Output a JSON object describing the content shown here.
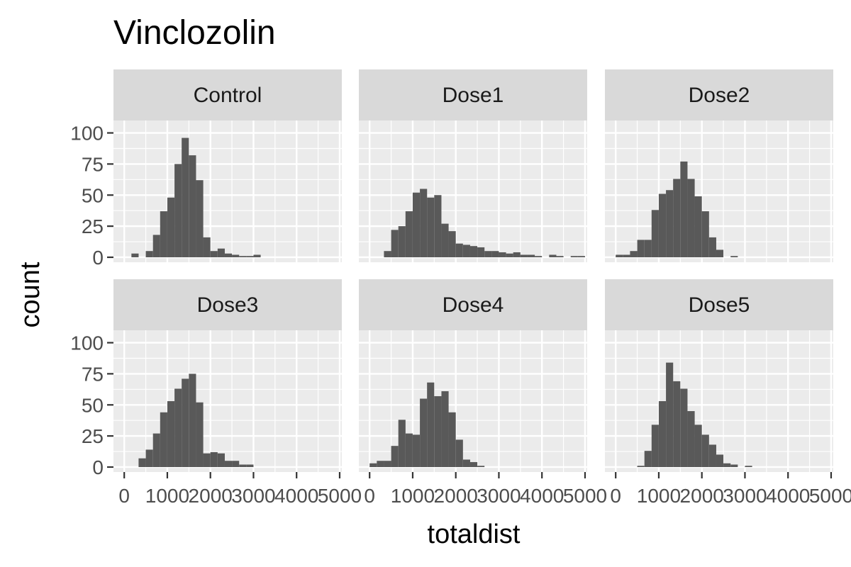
{
  "chart_data": {
    "type": "bar",
    "subtype": "faceted-histogram",
    "title": "Vinclozolin",
    "xlabel": "totaldist",
    "ylabel": "count",
    "bin_width": 166.7,
    "xlim": [
      -250,
      5050
    ],
    "ylim": [
      -4,
      110
    ],
    "x_ticks": [
      0,
      1000,
      2000,
      3000,
      4000,
      5000
    ],
    "x_tick_labels": [
      "0",
      "1000",
      "2000",
      "3000",
      "4000",
      "5000"
    ],
    "y_ticks": [
      0,
      25,
      50,
      75,
      100
    ],
    "y_tick_labels": [
      "0",
      "25",
      "50",
      "75",
      "100"
    ],
    "grid": true,
    "facet_layout": {
      "rows": 2,
      "cols": 3
    },
    "facets": [
      {
        "label": "Control",
        "bins": [
          [
            0,
            0
          ],
          [
            167,
            3
          ],
          [
            333,
            0
          ],
          [
            500,
            5
          ],
          [
            667,
            18
          ],
          [
            833,
            37
          ],
          [
            1000,
            48
          ],
          [
            1167,
            75
          ],
          [
            1333,
            96
          ],
          [
            1500,
            82
          ],
          [
            1667,
            62
          ],
          [
            1833,
            16
          ],
          [
            2000,
            5
          ],
          [
            2167,
            7
          ],
          [
            2333,
            3
          ],
          [
            2500,
            2
          ],
          [
            2667,
            1
          ],
          [
            2833,
            1
          ],
          [
            3000,
            2
          ]
        ]
      },
      {
        "label": "Dose1",
        "bins": [
          [
            0,
            0
          ],
          [
            167,
            0
          ],
          [
            333,
            5
          ],
          [
            500,
            22
          ],
          [
            667,
            25
          ],
          [
            833,
            37
          ],
          [
            1000,
            52
          ],
          [
            1167,
            55
          ],
          [
            1333,
            48
          ],
          [
            1500,
            50
          ],
          [
            1667,
            27
          ],
          [
            1833,
            21
          ],
          [
            2000,
            11
          ],
          [
            2167,
            10
          ],
          [
            2333,
            9
          ],
          [
            2500,
            8
          ],
          [
            2667,
            5
          ],
          [
            2833,
            5
          ],
          [
            3000,
            4
          ],
          [
            3167,
            3
          ],
          [
            3333,
            4
          ],
          [
            3500,
            2
          ],
          [
            3667,
            2
          ],
          [
            3833,
            1
          ],
          [
            4000,
            0
          ],
          [
            4167,
            2
          ],
          [
            4333,
            1
          ],
          [
            4500,
            0
          ],
          [
            4667,
            1
          ],
          [
            4833,
            1
          ]
        ]
      },
      {
        "label": "Dose2",
        "bins": [
          [
            0,
            2
          ],
          [
            167,
            2
          ],
          [
            333,
            5
          ],
          [
            500,
            14
          ],
          [
            667,
            14
          ],
          [
            833,
            38
          ],
          [
            1000,
            51
          ],
          [
            1167,
            54
          ],
          [
            1333,
            63
          ],
          [
            1500,
            77
          ],
          [
            1667,
            63
          ],
          [
            1833,
            49
          ],
          [
            2000,
            37
          ],
          [
            2167,
            16
          ],
          [
            2333,
            6
          ],
          [
            2500,
            0
          ],
          [
            2667,
            1
          ]
        ]
      },
      {
        "label": "Dose3",
        "bins": [
          [
            0,
            0
          ],
          [
            167,
            0
          ],
          [
            333,
            7
          ],
          [
            500,
            14
          ],
          [
            667,
            27
          ],
          [
            833,
            44
          ],
          [
            1000,
            53
          ],
          [
            1167,
            63
          ],
          [
            1333,
            71
          ],
          [
            1500,
            75
          ],
          [
            1667,
            52
          ],
          [
            1833,
            11
          ],
          [
            2000,
            12
          ],
          [
            2167,
            11
          ],
          [
            2333,
            5
          ],
          [
            2500,
            5
          ],
          [
            2667,
            2
          ],
          [
            2833,
            2
          ]
        ]
      },
      {
        "label": "Dose4",
        "bins": [
          [
            0,
            3
          ],
          [
            167,
            5
          ],
          [
            333,
            5
          ],
          [
            500,
            17
          ],
          [
            667,
            38
          ],
          [
            833,
            27
          ],
          [
            1000,
            26
          ],
          [
            1167,
            55
          ],
          [
            1333,
            68
          ],
          [
            1500,
            57
          ],
          [
            1667,
            61
          ],
          [
            1833,
            44
          ],
          [
            2000,
            22
          ],
          [
            2167,
            6
          ],
          [
            2333,
            4
          ],
          [
            2500,
            1
          ]
        ]
      },
      {
        "label": "Dose5",
        "bins": [
          [
            0,
            0
          ],
          [
            167,
            0
          ],
          [
            333,
            0
          ],
          [
            500,
            1
          ],
          [
            667,
            13
          ],
          [
            833,
            34
          ],
          [
            1000,
            53
          ],
          [
            1167,
            84
          ],
          [
            1333,
            69
          ],
          [
            1500,
            63
          ],
          [
            1667,
            45
          ],
          [
            1833,
            34
          ],
          [
            2000,
            26
          ],
          [
            2167,
            18
          ],
          [
            2333,
            10
          ],
          [
            2500,
            3
          ],
          [
            2667,
            2
          ],
          [
            2833,
            0
          ],
          [
            3000,
            1
          ]
        ]
      }
    ]
  }
}
